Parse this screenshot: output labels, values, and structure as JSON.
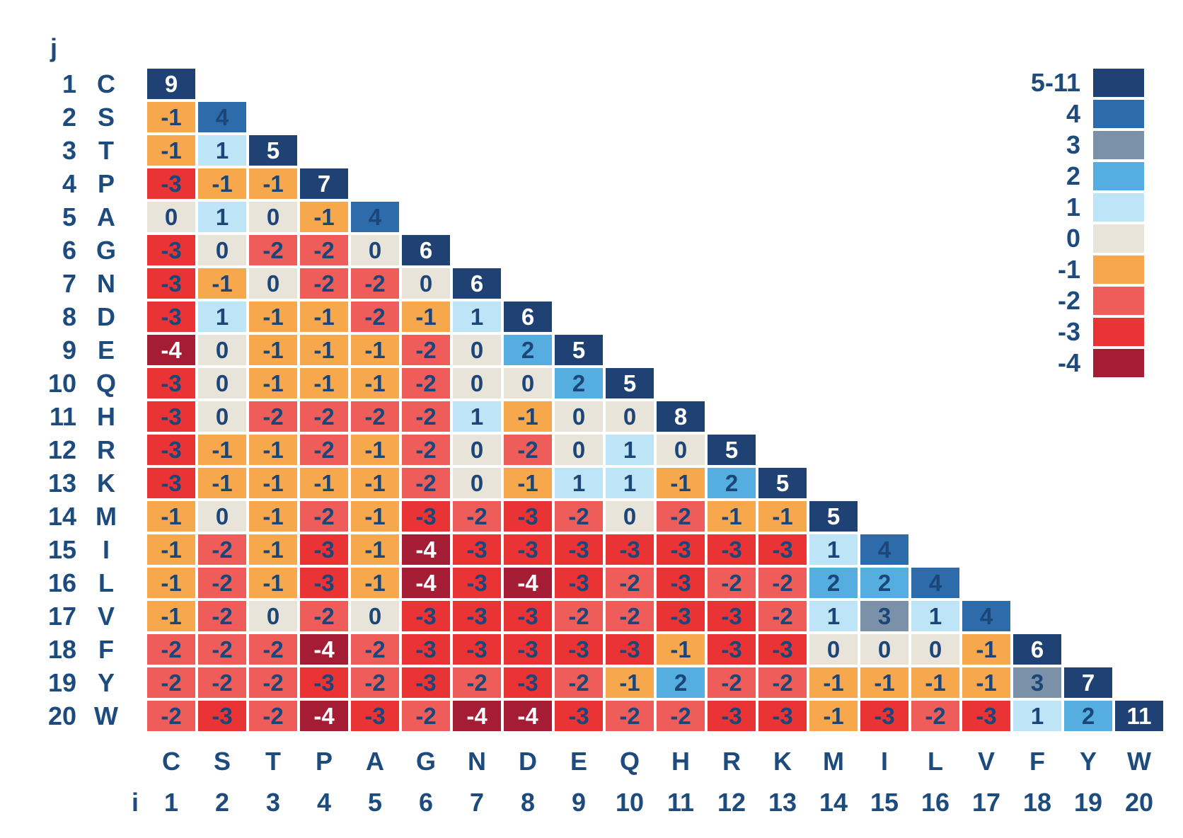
{
  "chart_data": {
    "type": "heatmap",
    "title": "",
    "description": "Lower-triangular amino-acid substitution score matrix with blue-to-red score color scale",
    "row_axis": {
      "label": "j",
      "indices": [
        1,
        2,
        3,
        4,
        5,
        6,
        7,
        8,
        9,
        10,
        11,
        12,
        13,
        14,
        15,
        16,
        17,
        18,
        19,
        20
      ],
      "residues": [
        "C",
        "S",
        "T",
        "P",
        "A",
        "G",
        "N",
        "D",
        "E",
        "Q",
        "H",
        "R",
        "K",
        "M",
        "I",
        "L",
        "V",
        "F",
        "Y",
        "W"
      ]
    },
    "col_axis": {
      "label": "i",
      "indices": [
        1,
        2,
        3,
        4,
        5,
        6,
        7,
        8,
        9,
        10,
        11,
        12,
        13,
        14,
        15,
        16,
        17,
        18,
        19,
        20
      ],
      "residues": [
        "C",
        "S",
        "T",
        "P",
        "A",
        "G",
        "N",
        "D",
        "E",
        "Q",
        "H",
        "R",
        "K",
        "M",
        "I",
        "L",
        "V",
        "F",
        "Y",
        "W"
      ]
    },
    "values": [
      [
        9
      ],
      [
        -1,
        4
      ],
      [
        -1,
        1,
        5
      ],
      [
        -3,
        -1,
        -1,
        7
      ],
      [
        0,
        1,
        0,
        -1,
        4
      ],
      [
        -3,
        0,
        -2,
        -2,
        0,
        6
      ],
      [
        -3,
        -1,
        0,
        -2,
        -2,
        0,
        6
      ],
      [
        -3,
        1,
        -1,
        -1,
        -2,
        -1,
        1,
        6
      ],
      [
        -4,
        0,
        -1,
        -1,
        -1,
        -2,
        0,
        2,
        5
      ],
      [
        -3,
        0,
        -1,
        -1,
        -1,
        -2,
        0,
        0,
        2,
        5
      ],
      [
        -3,
        0,
        -2,
        -2,
        -2,
        -2,
        1,
        -1,
        0,
        0,
        8
      ],
      [
        -3,
        -1,
        -1,
        -2,
        -1,
        -2,
        0,
        -2,
        0,
        1,
        0,
        5
      ],
      [
        -3,
        -1,
        -1,
        -1,
        -1,
        -2,
        0,
        -1,
        1,
        1,
        -1,
        2,
        5
      ],
      [
        -1,
        0,
        -1,
        -2,
        -1,
        -3,
        -2,
        -3,
        -2,
        0,
        -2,
        -1,
        -1,
        5
      ],
      [
        -1,
        -2,
        -1,
        -3,
        -1,
        -4,
        -3,
        -3,
        -3,
        -3,
        -3,
        -3,
        -3,
        1,
        4
      ],
      [
        -1,
        -2,
        -1,
        -3,
        -1,
        -4,
        -3,
        -4,
        -3,
        -2,
        -3,
        -2,
        -2,
        2,
        2,
        4
      ],
      [
        -1,
        -2,
        0,
        -2,
        0,
        -3,
        -3,
        -3,
        -2,
        -2,
        -3,
        -3,
        -2,
        1,
        3,
        1,
        4
      ],
      [
        -2,
        -2,
        -2,
        -4,
        -2,
        -3,
        -3,
        -3,
        -3,
        -3,
        -1,
        -3,
        -3,
        0,
        0,
        0,
        -1,
        6
      ],
      [
        -2,
        -2,
        -2,
        -3,
        -2,
        -3,
        -2,
        -3,
        -2,
        -1,
        2,
        -2,
        -2,
        -1,
        -1,
        -1,
        -1,
        3,
        7
      ],
      [
        -2,
        -3,
        -2,
        -4,
        -3,
        -2,
        -4,
        -4,
        -3,
        -2,
        -2,
        -3,
        -3,
        -1,
        -3,
        -2,
        -3,
        1,
        2,
        11
      ]
    ],
    "color_scale": [
      {
        "label": "5-11",
        "min": 5,
        "max": 11,
        "color": "#1F4173",
        "text_color": "#FFFFFF"
      },
      {
        "label": "4",
        "min": 4,
        "max": 4,
        "color": "#2E6BAA",
        "text_color": "#1B4677"
      },
      {
        "label": "3",
        "min": 3,
        "max": 3,
        "color": "#7A91A9",
        "text_color": "#1B4677"
      },
      {
        "label": "2",
        "min": 2,
        "max": 2,
        "color": "#55ADE0",
        "text_color": "#1B4677"
      },
      {
        "label": "1",
        "min": 1,
        "max": 1,
        "color": "#BEE4F8",
        "text_color": "#1B4677"
      },
      {
        "label": "0",
        "min": 0,
        "max": 0,
        "color": "#E9E4DA",
        "text_color": "#1B4677"
      },
      {
        "label": "-1",
        "min": -1,
        "max": -1,
        "color": "#F7A84C",
        "text_color": "#1B4677"
      },
      {
        "label": "-2",
        "min": -2,
        "max": -2,
        "color": "#EF5D5A",
        "text_color": "#1B4677"
      },
      {
        "label": "-3",
        "min": -3,
        "max": -3,
        "color": "#E93334",
        "text_color": "#1B4677"
      },
      {
        "label": "-4",
        "min": -4,
        "max": -4,
        "color": "#A51D35",
        "text_color": "#FFFFFF"
      }
    ],
    "legend_position": "top-right",
    "grid": "white gaps between cells"
  },
  "legend": {
    "entries": [
      "5-11",
      "4",
      "3",
      "2",
      "1",
      "0",
      "-1",
      "-2",
      "-3",
      "-4"
    ]
  }
}
